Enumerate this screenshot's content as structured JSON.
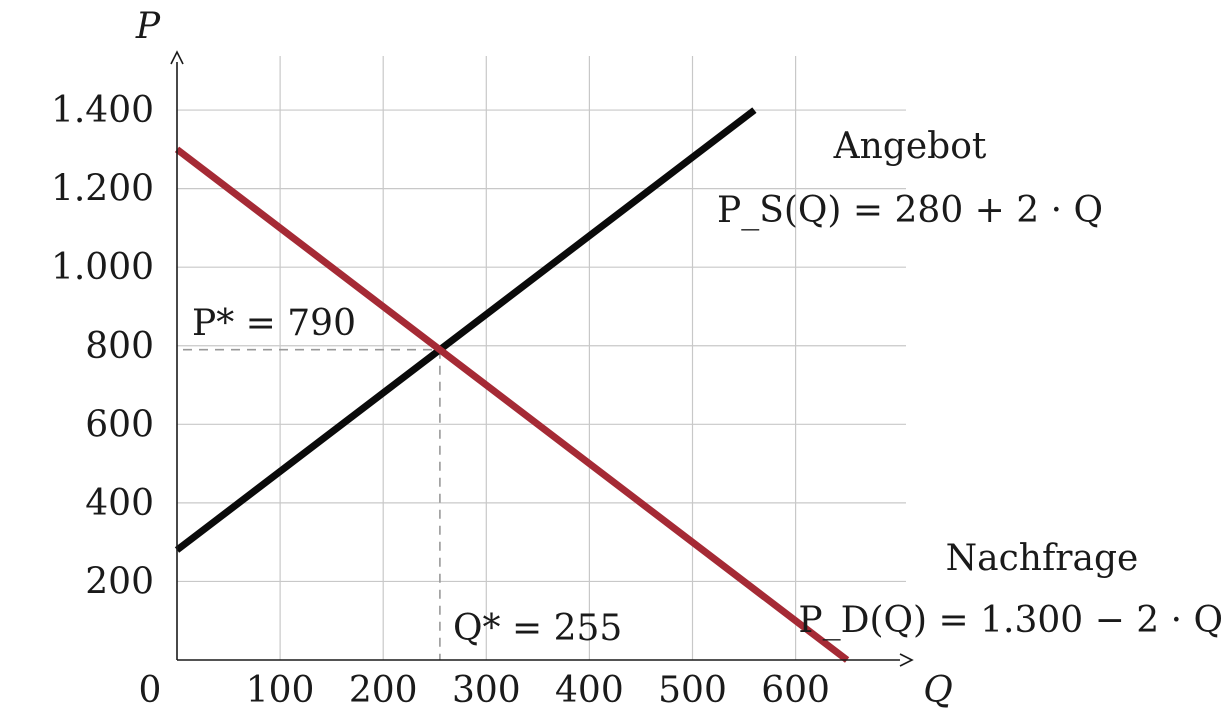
{
  "chart_data": {
    "type": "line",
    "xlabel": "Q",
    "ylabel": "P",
    "xlim": [
      0,
      700
    ],
    "ylim": [
      0,
      1500
    ],
    "origin_label": "0",
    "x_ticks": [
      100,
      200,
      300,
      400,
      500,
      600
    ],
    "x_tick_labels": [
      "100",
      "200",
      "300",
      "400",
      "500",
      "600"
    ],
    "y_ticks": [
      200,
      400,
      600,
      800,
      1000,
      1200,
      1400
    ],
    "y_tick_labels": [
      "200",
      "400",
      "600",
      "800",
      "1.000",
      "1.200",
      "1.400"
    ],
    "grid": true,
    "series": [
      {
        "name": "Angebot",
        "formula": "P_S(Q) = 280 + 2 · Q",
        "color": "#0a0a0a",
        "x": [
          0,
          560
        ],
        "y": [
          280,
          1400
        ]
      },
      {
        "name": "Nachfrage",
        "formula": "P_D(Q) = 1.300 − 2 · Q",
        "color": "#a52a35",
        "x": [
          0,
          650
        ],
        "y": [
          1300,
          0
        ]
      }
    ],
    "equilibrium": {
      "x": 255,
      "y": 790,
      "price_label": "P* = 790",
      "quantity_label": "Q* = 255"
    }
  }
}
